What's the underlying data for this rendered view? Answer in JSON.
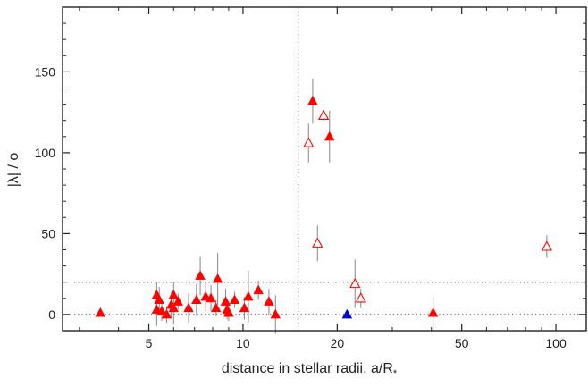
{
  "chart_data": {
    "type": "scatter",
    "title": "",
    "xlabel": "distance in stellar radii, a/R",
    "xlabel_subscript": "*",
    "ylabel": "|λ| / o",
    "x_scale": "log",
    "xlim": [
      2.65,
      125
    ],
    "ylim": [
      -10,
      190
    ],
    "x_ticks": [
      5,
      10,
      20,
      50,
      100
    ],
    "x_tick_labels": [
      "5",
      "10",
      "20",
      "50",
      "100"
    ],
    "y_ticks": [
      0,
      50,
      100,
      150
    ],
    "y_tick_labels": [
      "0",
      "50",
      "100",
      "150"
    ],
    "grid": false,
    "legend": "none",
    "reference_lines": {
      "vertical_x": 15,
      "horizontal_y": [
        0,
        20
      ],
      "style": "dotted"
    },
    "colors": {
      "filled_marker": "#ff0000",
      "open_marker": "#ff0000",
      "highlight_marker": "#0000cc",
      "error_bar": "#909090",
      "axis": "#222222",
      "reference_line": "#555555"
    },
    "series": [
      {
        "marker": "filled-triangle",
        "color": "#ff0000",
        "points": [
          {
            "x": 3.5,
            "y": 1,
            "err": 0
          },
          {
            "x": 5.3,
            "y": 12,
            "err": 8
          },
          {
            "x": 5.3,
            "y": 3,
            "err": 10
          },
          {
            "x": 5.4,
            "y": 9,
            "err": 8
          },
          {
            "x": 5.5,
            "y": 2,
            "err": 6
          },
          {
            "x": 5.7,
            "y": 0,
            "err": 5
          },
          {
            "x": 5.9,
            "y": 6,
            "err": 8
          },
          {
            "x": 6.0,
            "y": 12,
            "err": 8
          },
          {
            "x": 6.0,
            "y": 4,
            "err": 10
          },
          {
            "x": 6.2,
            "y": 8,
            "err": 5
          },
          {
            "x": 6.7,
            "y": 4,
            "err": 9
          },
          {
            "x": 7.1,
            "y": 9,
            "err": 10
          },
          {
            "x": 7.3,
            "y": 24,
            "err": 12
          },
          {
            "x": 7.6,
            "y": 11,
            "err": 9
          },
          {
            "x": 7.9,
            "y": 10,
            "err": 8
          },
          {
            "x": 8.2,
            "y": 4,
            "err": 5
          },
          {
            "x": 8.3,
            "y": 22,
            "err": 16
          },
          {
            "x": 8.8,
            "y": 8,
            "err": 8
          },
          {
            "x": 8.9,
            "y": 3,
            "err": 6
          },
          {
            "x": 9.0,
            "y": 1,
            "err": 5
          },
          {
            "x": 9.4,
            "y": 9,
            "err": 5
          },
          {
            "x": 10.1,
            "y": 4,
            "err": 7
          },
          {
            "x": 10.4,
            "y": 11,
            "err": 16
          },
          {
            "x": 11.2,
            "y": 15,
            "err": 6
          },
          {
            "x": 12.1,
            "y": 8,
            "err": 8
          },
          {
            "x": 12.7,
            "y": 0,
            "err": 12
          },
          {
            "x": 16.7,
            "y": 132,
            "err": 14
          },
          {
            "x": 18.9,
            "y": 110,
            "err": 16
          },
          {
            "x": 40.5,
            "y": 1,
            "err": 10
          }
        ]
      },
      {
        "marker": "open-triangle",
        "color": "#ff0000",
        "points": [
          {
            "x": 16.2,
            "y": 106,
            "err": 12
          },
          {
            "x": 17.3,
            "y": 44,
            "err": 11
          },
          {
            "x": 18.1,
            "y": 123,
            "err": 3
          },
          {
            "x": 22.8,
            "y": 19,
            "err": 15
          },
          {
            "x": 23.8,
            "y": 10,
            "err": 6
          },
          {
            "x": 93.5,
            "y": 42,
            "err": 7
          }
        ]
      },
      {
        "marker": "filled-triangle",
        "color": "#0000cc",
        "points": [
          {
            "x": 21.5,
            "y": 0,
            "err": 0
          }
        ]
      }
    ]
  }
}
